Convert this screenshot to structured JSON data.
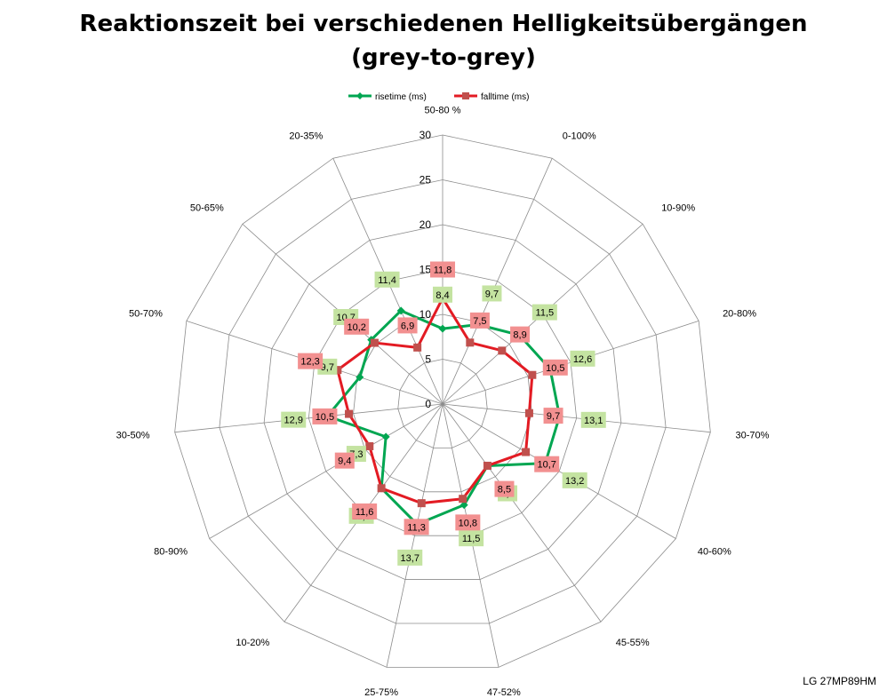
{
  "chart_data": {
    "type": "radar",
    "title_line1": "Reaktionszeit bei verschiedenen Helligkeitsübergängen",
    "title_line2": "(grey-to-grey)",
    "categories": [
      "50-80 %",
      "0-100%",
      "10-90%",
      "20-80%",
      "30-70%",
      "40-60%",
      "45-55%",
      "47-52%",
      "25-75%",
      "10-20%",
      "80-90%",
      "30-50%",
      "50-70%",
      "50-65%",
      "20-35%"
    ],
    "series": [
      {
        "name": "risetime (ms)",
        "color": "#00a651",
        "label_bg": "#c4e3a1",
        "values": [
          8.4,
          9.7,
          11.5,
          12.6,
          13.1,
          13.2,
          8.5,
          11.5,
          13.7,
          11.6,
          7.3,
          12.9,
          9.7,
          10.7,
          11.4
        ],
        "labels": [
          "8,4",
          "9,7",
          "11,5",
          "12,6",
          "13,1",
          "13,2",
          "8,5",
          "11,5",
          "13,7",
          "11,6",
          "7,3",
          "12,9",
          "9,7",
          "10,7",
          "11,4"
        ]
      },
      {
        "name": "falltime (ms)",
        "color": "#e31b23",
        "label_bg": "#f29090",
        "values": [
          11.8,
          7.5,
          8.9,
          10.5,
          9.7,
          10.7,
          8.5,
          10.8,
          11.3,
          11.6,
          9.4,
          10.5,
          12.3,
          10.2,
          6.9
        ],
        "labels": [
          "11,8",
          "7,5",
          "8,9",
          "10,5",
          "9,7",
          "10,7",
          "8,5",
          "10,8",
          "11,3",
          "11,6",
          "9,4",
          "10,5",
          "12,3",
          "10,2",
          "6,9"
        ]
      }
    ],
    "rlim": [
      0,
      30
    ],
    "ticks": [
      0,
      5,
      10,
      15,
      20,
      25,
      30
    ],
    "tick_labels": [
      "0",
      "5",
      "10",
      "15",
      "20",
      "25",
      "30"
    ],
    "grid": true,
    "legend_position": "top"
  },
  "footer": {
    "text": "LG 27MP89HM"
  }
}
